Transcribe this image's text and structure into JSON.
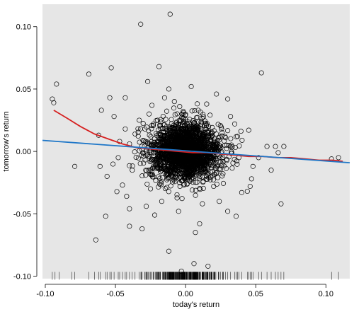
{
  "chart_data": {
    "type": "scatter",
    "xlabel": "today's return",
    "ylabel": "tomorrow's return",
    "xlim": [
      -0.102,
      0.117
    ],
    "ylim": [
      -0.102,
      0.118
    ],
    "xticks": [
      -0.1,
      -0.05,
      0.0,
      0.05,
      0.1
    ],
    "yticks": [
      -0.1,
      -0.05,
      0.0,
      0.05,
      0.1
    ],
    "xtick_labels": [
      "-0.10",
      "-0.05",
      "0.00",
      "0.05",
      "0.10"
    ],
    "ytick_labels": [
      "-0.10",
      "-0.05",
      "0.00",
      "0.05",
      "0.10"
    ],
    "grid": false,
    "colors": {
      "panel": "#e6e6e6",
      "points": "#000000",
      "smooth_line": "#d62020",
      "linear_fit": "#1f77c8"
    },
    "points": [
      [
        -0.011,
        0.11
      ],
      [
        -0.032,
        0.102
      ],
      [
        -0.092,
        0.054
      ],
      [
        -0.069,
        0.062
      ],
      [
        -0.053,
        0.067
      ],
      [
        -0.019,
        0.068
      ],
      [
        0.054,
        0.063
      ],
      [
        -0.027,
        0.056
      ],
      [
        -0.095,
        0.042
      ],
      [
        -0.094,
        0.039
      ],
      [
        -0.054,
        0.043
      ],
      [
        -0.043,
        0.043
      ],
      [
        -0.012,
        0.05
      ],
      [
        0.004,
        0.052
      ],
      [
        -0.06,
        0.033
      ],
      [
        -0.051,
        0.028
      ],
      [
        -0.015,
        0.043
      ],
      [
        0.022,
        0.046
      ],
      [
        0.03,
        0.042
      ],
      [
        -0.062,
        0.013
      ],
      [
        -0.043,
        0.018
      ],
      [
        -0.033,
        0.025
      ],
      [
        -0.036,
        0.014
      ],
      [
        -0.04,
        0.006
      ],
      [
        0.035,
        0.022
      ],
      [
        0.045,
        0.017
      ],
      [
        0.058,
        0.004
      ],
      [
        0.064,
        0.004
      ],
      [
        0.066,
        -0.001
      ],
      [
        0.07,
        0.004
      ],
      [
        0.104,
        -0.006
      ],
      [
        0.109,
        -0.005
      ],
      [
        0.068,
        -0.042
      ],
      [
        0.052,
        -0.005
      ],
      [
        0.048,
        -0.012
      ],
      [
        0.061,
        -0.015
      ],
      [
        0.046,
        -0.028
      ],
      [
        0.044,
        -0.032
      ],
      [
        0.04,
        -0.033
      ],
      [
        0.047,
        -0.022
      ],
      [
        -0.079,
        -0.012
      ],
      [
        -0.061,
        -0.012
      ],
      [
        -0.056,
        -0.02
      ],
      [
        -0.057,
        -0.052
      ],
      [
        -0.064,
        -0.071
      ],
      [
        -0.045,
        -0.027
      ],
      [
        -0.042,
        -0.036
      ],
      [
        -0.04,
        -0.046
      ],
      [
        -0.04,
        -0.06
      ],
      [
        -0.031,
        -0.062
      ],
      [
        -0.022,
        -0.051
      ],
      [
        -0.012,
        -0.08
      ],
      [
        0.007,
        -0.065
      ],
      [
        0.01,
        -0.058
      ],
      [
        0.036,
        -0.052
      ],
      [
        0.03,
        -0.048
      ],
      [
        0.024,
        -0.04
      ],
      [
        -0.005,
        -0.048
      ],
      [
        -0.003,
        -0.096
      ],
      [
        0.016,
        -0.092
      ],
      [
        0.006,
        -0.09
      ],
      [
        -0.028,
        -0.044
      ],
      [
        -0.017,
        -0.04
      ],
      [
        0.012,
        -0.042
      ],
      [
        -0.047,
        0.008
      ],
      [
        -0.048,
        -0.005
      ],
      [
        -0.038,
        -0.015
      ],
      [
        0.038,
        -0.005
      ],
      [
        0.037,
        0.012
      ],
      [
        0.032,
        0.028
      ],
      [
        -0.024,
        0.037
      ],
      [
        0.015,
        0.038
      ],
      [
        0.009,
        0.033
      ],
      [
        -0.008,
        0.04
      ],
      [
        -0.026,
        0.03
      ],
      [
        -0.029,
        0.018
      ],
      [
        -0.02,
        0.025
      ],
      [
        0.026,
        0.015
      ],
      [
        0.02,
        -0.028
      ],
      [
        -0.025,
        -0.03
      ]
    ],
    "cluster": {
      "x_mean": 0.0,
      "x_sd": 0.0125,
      "y_mean": 0.0,
      "y_sd": 0.0115,
      "count": 2200
    },
    "smooth_curve": [
      [
        -0.094,
        0.033
      ],
      [
        -0.085,
        0.027
      ],
      [
        -0.075,
        0.02
      ],
      [
        -0.065,
        0.014
      ],
      [
        -0.055,
        0.01
      ],
      [
        -0.045,
        0.006
      ],
      [
        -0.035,
        0.003
      ],
      [
        -0.025,
        0.002
      ],
      [
        -0.015,
        0.001
      ],
      [
        -0.005,
        0.0
      ],
      [
        0.005,
        -0.001
      ],
      [
        0.015,
        -0.001
      ],
      [
        0.025,
        -0.002
      ],
      [
        0.035,
        -0.003
      ],
      [
        0.045,
        -0.004
      ],
      [
        0.055,
        -0.004
      ],
      [
        0.065,
        -0.005
      ],
      [
        0.075,
        -0.005
      ],
      [
        0.085,
        -0.006
      ],
      [
        0.095,
        -0.007
      ],
      [
        0.105,
        -0.007
      ],
      [
        0.112,
        -0.008
      ]
    ],
    "linear_fit": {
      "intercept": 0.0005,
      "slope": -0.082
    },
    "rug": {
      "y": -0.1,
      "x": [
        -0.095,
        -0.093,
        -0.09,
        -0.081,
        -0.079,
        -0.069,
        -0.065,
        -0.062,
        -0.061,
        -0.057,
        -0.056,
        -0.054,
        -0.053,
        -0.051,
        -0.048,
        -0.047,
        -0.045,
        -0.043,
        -0.042,
        -0.04,
        -0.038,
        -0.036,
        -0.033,
        -0.031,
        0.03,
        0.032,
        0.035,
        0.036,
        0.037,
        0.038,
        0.04,
        0.044,
        0.045,
        0.046,
        0.047,
        0.048,
        0.052,
        0.054,
        0.058,
        0.061,
        0.064,
        0.066,
        0.068,
        0.07,
        0.104,
        0.109
      ]
    }
  }
}
